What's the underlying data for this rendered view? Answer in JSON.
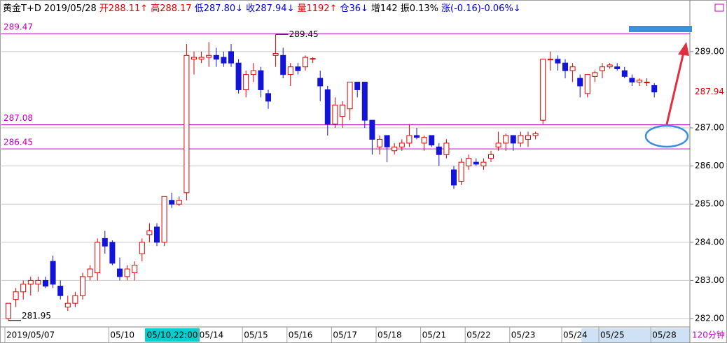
{
  "chart_data": {
    "type": "candlestick",
    "header": [
      {
        "text": "黄金T+D",
        "color": "#000000"
      },
      {
        "text": "2019/05/28",
        "color": "#000000"
      },
      {
        "text": "开288.11↑",
        "color": "#e00000"
      },
      {
        "text": "高288.17",
        "color": "#e00000"
      },
      {
        "text": "低287.80↓",
        "color": "#0000e0"
      },
      {
        "text": "收287.94↓",
        "color": "#0000e0"
      },
      {
        "text": "量1192↑",
        "color": "#e00000"
      },
      {
        "text": "仓36↓",
        "color": "#0000e0"
      },
      {
        "text": "增142",
        "color": "#000000"
      },
      {
        "text": "振0.13%",
        "color": "#000000"
      },
      {
        "text": "涨(-0.16)-0.06%↓",
        "color": "#0000e0"
      }
    ],
    "categories": [
      "2019/05/07",
      null,
      null,
      null,
      null,
      null,
      null,
      null,
      null,
      null,
      null,
      null,
      null,
      null,
      "05/10",
      null,
      null,
      null,
      null,
      null,
      null,
      null,
      null,
      null,
      null,
      null,
      "05/14",
      null,
      null,
      null,
      null,
      null,
      "05/15",
      null,
      null,
      null,
      null,
      null,
      "05/16",
      null,
      null,
      null,
      null,
      null,
      "05/17",
      null,
      null,
      null,
      null,
      null,
      "05/18",
      null,
      null,
      null,
      null,
      null,
      "05/21",
      null,
      null,
      null,
      null,
      null,
      "05/22",
      null,
      null,
      null,
      null,
      null,
      "05/23",
      null,
      null,
      null,
      null,
      null,
      null,
      "05/24",
      null,
      null,
      null,
      null,
      "05/25",
      null,
      null,
      null,
      null,
      null,
      null,
      "05/28"
    ],
    "open": [
      282.0,
      282.5,
      282.7,
      282.9,
      282.9,
      283.0,
      283.5,
      282.85,
      282.3,
      282.4,
      282.6,
      283.1,
      283.2,
      284.1,
      284.0,
      283.3,
      283.1,
      283.2,
      283.7,
      284.2,
      284.4,
      284.0,
      285.1,
      285.0,
      285.3,
      288.8,
      288.8,
      288.85,
      288.9,
      288.85,
      289.0,
      288.7,
      288.0,
      288.4,
      288.5,
      287.9,
      288.9,
      288.9,
      288.4,
      288.6,
      288.6,
      288.8,
      288.3,
      288.0,
      287.1,
      287.3,
      287.5,
      288.2,
      288.2,
      287.2,
      286.5,
      286.8,
      286.4,
      286.5,
      286.6,
      286.8,
      286.6,
      286.8,
      286.5,
      286.3,
      285.9,
      285.6,
      286.0,
      286.1,
      286.0,
      286.2,
      286.5,
      286.6,
      286.8,
      286.6,
      286.7,
      286.8,
      287.2,
      288.8,
      288.8,
      288.7,
      288.5,
      288.3,
      287.9,
      288.35,
      288.5,
      288.6,
      288.6,
      288.5,
      288.3,
      288.2,
      288.2,
      288.11
    ],
    "high": [
      282.4,
      282.8,
      283.0,
      283.1,
      283.1,
      283.1,
      283.65,
      283.0,
      282.6,
      282.7,
      283.2,
      283.4,
      284.1,
      284.3,
      284.05,
      283.6,
      283.4,
      283.5,
      284.1,
      284.5,
      284.5,
      285.2,
      285.3,
      285.2,
      289.2,
      289.0,
      289.0,
      289.25,
      289.1,
      289.0,
      289.2,
      288.8,
      288.5,
      288.7,
      288.6,
      288.0,
      289.45,
      289.1,
      288.7,
      288.7,
      288.9,
      288.85,
      288.5,
      288.1,
      287.8,
      287.7,
      288.2,
      288.2,
      288.2,
      287.2,
      286.8,
      286.8,
      286.6,
      286.7,
      287.1,
      287.0,
      286.8,
      286.8,
      286.6,
      286.7,
      286.0,
      286.2,
      286.3,
      286.2,
      286.2,
      286.4,
      286.9,
      286.85,
      286.8,
      286.9,
      286.9,
      286.9,
      288.8,
      289.0,
      288.9,
      288.8,
      288.7,
      288.4,
      288.4,
      288.5,
      288.7,
      288.7,
      288.7,
      288.6,
      288.4,
      288.3,
      288.3,
      288.17
    ],
    "low": [
      281.95,
      282.3,
      282.5,
      282.6,
      282.7,
      282.8,
      282.8,
      282.5,
      282.2,
      282.3,
      282.5,
      283.0,
      283.0,
      283.7,
      283.4,
      283.0,
      283.0,
      283.0,
      283.5,
      284.0,
      283.9,
      283.9,
      284.9,
      284.95,
      285.1,
      288.4,
      288.7,
      288.6,
      288.6,
      288.6,
      288.6,
      287.9,
      287.8,
      288.2,
      287.8,
      287.5,
      288.6,
      288.3,
      288.1,
      288.4,
      288.5,
      288.7,
      287.7,
      286.8,
      287.0,
      287.0,
      287.2,
      287.8,
      287.0,
      286.3,
      286.3,
      286.1,
      286.3,
      286.4,
      286.5,
      286.7,
      286.4,
      286.5,
      286.0,
      286.2,
      285.4,
      285.5,
      285.9,
      286.0,
      285.9,
      286.1,
      286.4,
      286.4,
      286.4,
      286.5,
      286.5,
      286.7,
      287.1,
      288.5,
      288.5,
      288.3,
      288.2,
      287.8,
      287.8,
      288.2,
      288.3,
      288.55,
      288.5,
      288.3,
      288.1,
      288.1,
      288.1,
      287.8
    ],
    "close": [
      282.4,
      282.7,
      282.9,
      283.0,
      283.0,
      282.85,
      282.9,
      282.6,
      282.4,
      282.6,
      283.1,
      283.3,
      284.0,
      283.9,
      283.45,
      283.1,
      283.3,
      283.4,
      284.0,
      284.3,
      284.0,
      285.2,
      285.0,
      285.1,
      288.9,
      288.85,
      288.85,
      288.9,
      288.8,
      288.7,
      288.7,
      288.0,
      288.4,
      288.5,
      288.0,
      287.7,
      288.95,
      288.4,
      288.6,
      288.5,
      288.85,
      288.82,
      288.1,
      287.1,
      287.6,
      287.6,
      288.2,
      288.0,
      287.2,
      286.7,
      286.7,
      286.5,
      286.5,
      286.6,
      286.8,
      286.75,
      286.75,
      286.55,
      286.3,
      286.6,
      285.5,
      286.1,
      286.2,
      286.05,
      286.1,
      286.3,
      286.6,
      286.8,
      286.6,
      286.8,
      286.8,
      286.85,
      288.8,
      288.8,
      288.7,
      288.5,
      288.6,
      288.1,
      288.4,
      288.45,
      288.6,
      288.65,
      288.55,
      288.35,
      288.2,
      288.25,
      288.2,
      287.94
    ],
    "up_color": "#e00000",
    "down_color": "#1414d8",
    "ylim": [
      281.78,
      289.95
    ],
    "yticks": [
      {
        "value": 289,
        "label": "289.00"
      },
      {
        "value": 287,
        "label": "287.00"
      },
      {
        "value": 286,
        "label": "286.00"
      },
      {
        "value": 285,
        "label": "285.00"
      },
      {
        "value": 284,
        "label": "284.00"
      },
      {
        "value": 283,
        "label": "283.00"
      },
      {
        "value": 282,
        "label": "282.00"
      }
    ],
    "grid": true,
    "hlines": [
      289.47,
      287.08,
      286.45
    ],
    "hline_color": "#c000c0",
    "cursor_label": "05/10,22:00",
    "period": "120分钟"
  }
}
